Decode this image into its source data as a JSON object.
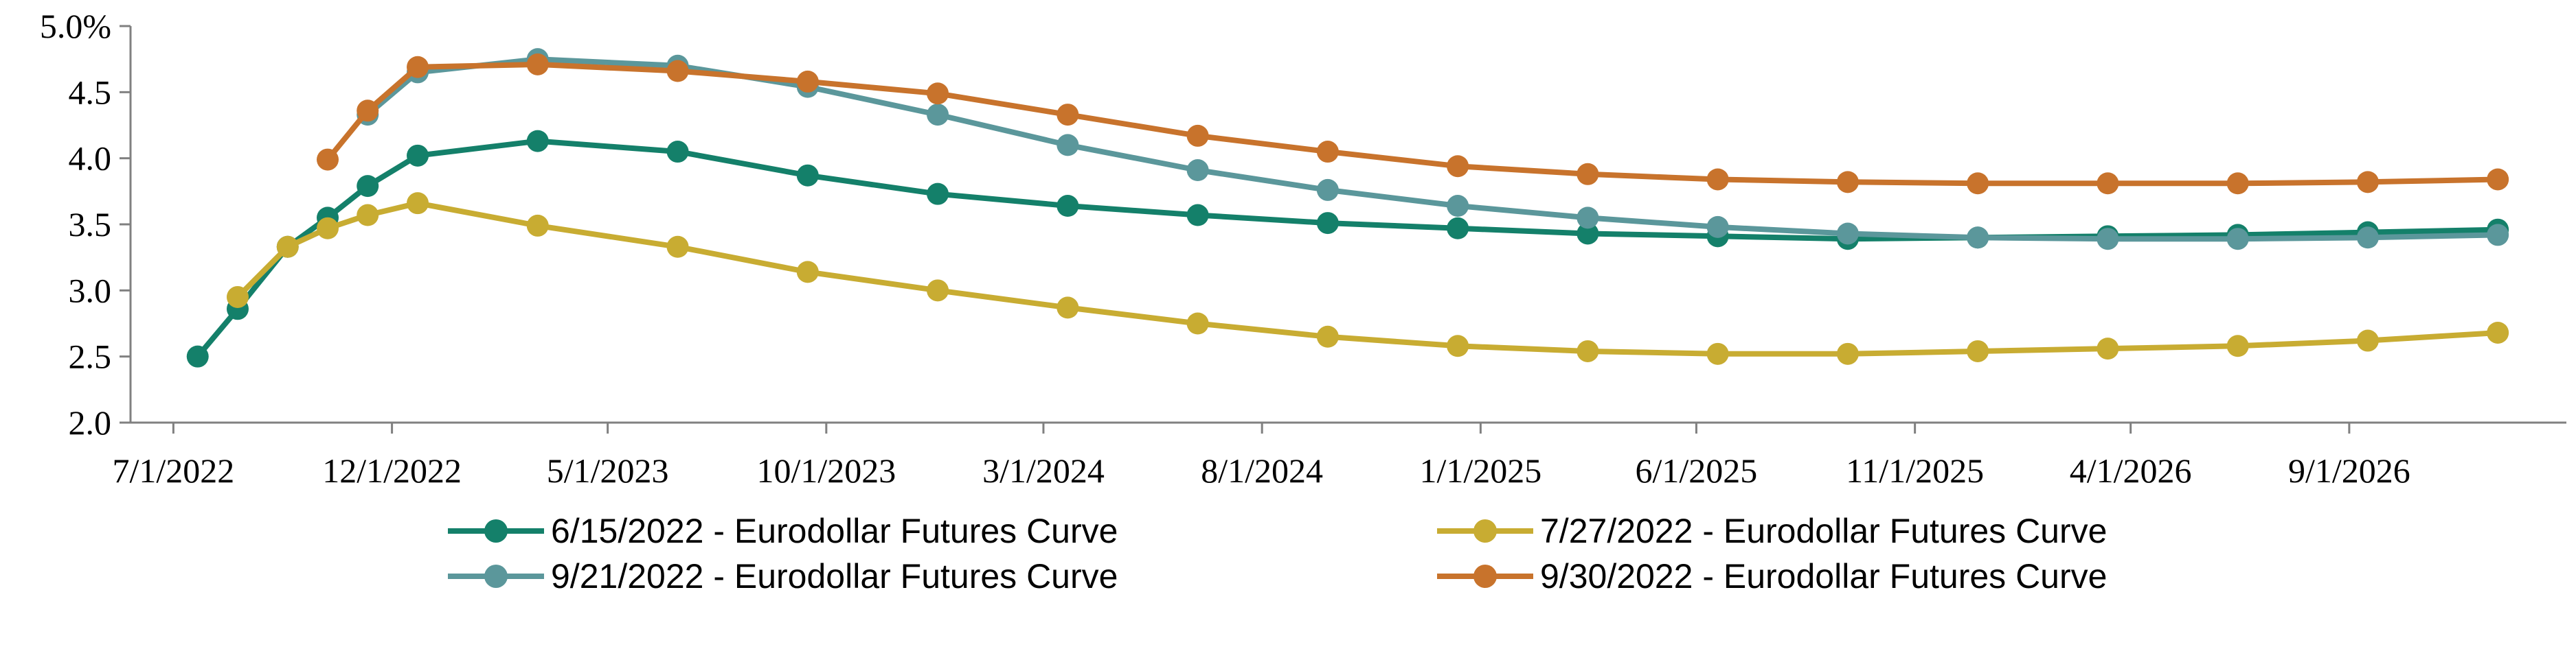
{
  "chart_data": {
    "type": "line",
    "title": "",
    "xlabel": "",
    "ylabel": "",
    "ylim": [
      2.0,
      5.0
    ],
    "yticks": [
      2.0,
      2.5,
      3.0,
      3.5,
      4.0,
      4.5,
      5.0
    ],
    "ytick_labels": [
      "2.0",
      "2.5",
      "3.0",
      "3.5",
      "4.0",
      "4.5",
      "5.0%"
    ],
    "xlim": [
      "2022-06-01",
      "2027-01-31"
    ],
    "xticks": [
      "2022-07-01",
      "2022-12-01",
      "2023-05-01",
      "2023-10-01",
      "2024-03-01",
      "2024-08-01",
      "2025-01-01",
      "2025-06-01",
      "2025-11-01",
      "2026-04-01",
      "2026-09-01"
    ],
    "xtick_labels": [
      "7/1/2022",
      "12/1/2022",
      "5/1/2023",
      "10/1/2023",
      "3/1/2024",
      "8/1/2024",
      "1/1/2025",
      "6/1/2025",
      "11/1/2025",
      "4/1/2026",
      "9/1/2026"
    ],
    "grid": false,
    "legend_position": "bottom",
    "series": [
      {
        "name": "6/15/2022 - Eurodollar Futures Curve",
        "color": "#14806a",
        "points": [
          [
            "2022-07-18",
            2.5
          ],
          [
            "2022-08-15",
            2.86
          ],
          [
            "2022-09-19",
            3.33
          ],
          [
            "2022-10-17",
            3.55
          ],
          [
            "2022-11-14",
            3.79
          ],
          [
            "2022-12-19",
            4.02
          ],
          [
            "2023-03-13",
            4.13
          ],
          [
            "2023-06-19",
            4.05
          ],
          [
            "2023-09-18",
            3.87
          ],
          [
            "2023-12-18",
            3.73
          ],
          [
            "2024-03-18",
            3.64
          ],
          [
            "2024-06-17",
            3.57
          ],
          [
            "2024-09-16",
            3.51
          ],
          [
            "2024-12-16",
            3.47
          ],
          [
            "2025-03-17",
            3.43
          ],
          [
            "2025-06-16",
            3.41
          ],
          [
            "2025-09-15",
            3.39
          ],
          [
            "2025-12-15",
            3.4
          ],
          [
            "2026-03-16",
            3.41
          ],
          [
            "2026-06-15",
            3.42
          ],
          [
            "2026-09-14",
            3.44
          ],
          [
            "2026-12-14",
            3.46
          ]
        ]
      },
      {
        "name": "7/27/2022 - Eurodollar Futures Curve",
        "color": "#c8ac32",
        "points": [
          [
            "2022-08-15",
            2.95
          ],
          [
            "2022-09-19",
            3.33
          ],
          [
            "2022-10-17",
            3.47
          ],
          [
            "2022-11-14",
            3.57
          ],
          [
            "2022-12-19",
            3.66
          ],
          [
            "2023-03-13",
            3.49
          ],
          [
            "2023-06-19",
            3.33
          ],
          [
            "2023-09-18",
            3.14
          ],
          [
            "2023-12-18",
            3.0
          ],
          [
            "2024-03-18",
            2.87
          ],
          [
            "2024-06-17",
            2.75
          ],
          [
            "2024-09-16",
            2.65
          ],
          [
            "2024-12-16",
            2.58
          ],
          [
            "2025-03-17",
            2.54
          ],
          [
            "2025-06-16",
            2.52
          ],
          [
            "2025-09-15",
            2.52
          ],
          [
            "2025-12-15",
            2.54
          ],
          [
            "2026-03-16",
            2.56
          ],
          [
            "2026-06-15",
            2.58
          ],
          [
            "2026-09-14",
            2.62
          ],
          [
            "2026-12-14",
            2.68
          ]
        ]
      },
      {
        "name": "9/21/2022 - Eurodollar Futures Curve",
        "color": "#5b979b",
        "points": [
          [
            "2022-11-14",
            4.33
          ],
          [
            "2022-12-19",
            4.65
          ],
          [
            "2023-03-13",
            4.75
          ],
          [
            "2023-06-19",
            4.7
          ],
          [
            "2023-09-18",
            4.54
          ],
          [
            "2023-12-18",
            4.33
          ],
          [
            "2024-03-18",
            4.1
          ],
          [
            "2024-06-17",
            3.91
          ],
          [
            "2024-09-16",
            3.76
          ],
          [
            "2024-12-16",
            3.64
          ],
          [
            "2025-03-17",
            3.55
          ],
          [
            "2025-06-16",
            3.48
          ],
          [
            "2025-09-15",
            3.43
          ],
          [
            "2025-12-15",
            3.4
          ],
          [
            "2026-03-16",
            3.39
          ],
          [
            "2026-06-15",
            3.39
          ],
          [
            "2026-09-14",
            3.4
          ],
          [
            "2026-12-14",
            3.42
          ]
        ]
      },
      {
        "name": "9/30/2022 - Eurodollar Futures Curve",
        "color": "#c8732c",
        "points": [
          [
            "2022-10-17",
            3.99
          ],
          [
            "2022-11-14",
            4.36
          ],
          [
            "2022-12-19",
            4.69
          ],
          [
            "2023-03-13",
            4.71
          ],
          [
            "2023-06-19",
            4.66
          ],
          [
            "2023-09-18",
            4.58
          ],
          [
            "2023-12-18",
            4.49
          ],
          [
            "2024-03-18",
            4.33
          ],
          [
            "2024-06-17",
            4.17
          ],
          [
            "2024-09-16",
            4.05
          ],
          [
            "2024-12-16",
            3.94
          ],
          [
            "2025-03-17",
            3.88
          ],
          [
            "2025-06-16",
            3.84
          ],
          [
            "2025-09-15",
            3.82
          ],
          [
            "2025-12-15",
            3.81
          ],
          [
            "2026-03-16",
            3.81
          ],
          [
            "2026-06-15",
            3.81
          ],
          [
            "2026-09-14",
            3.82
          ],
          [
            "2026-12-14",
            3.84
          ]
        ]
      }
    ]
  }
}
